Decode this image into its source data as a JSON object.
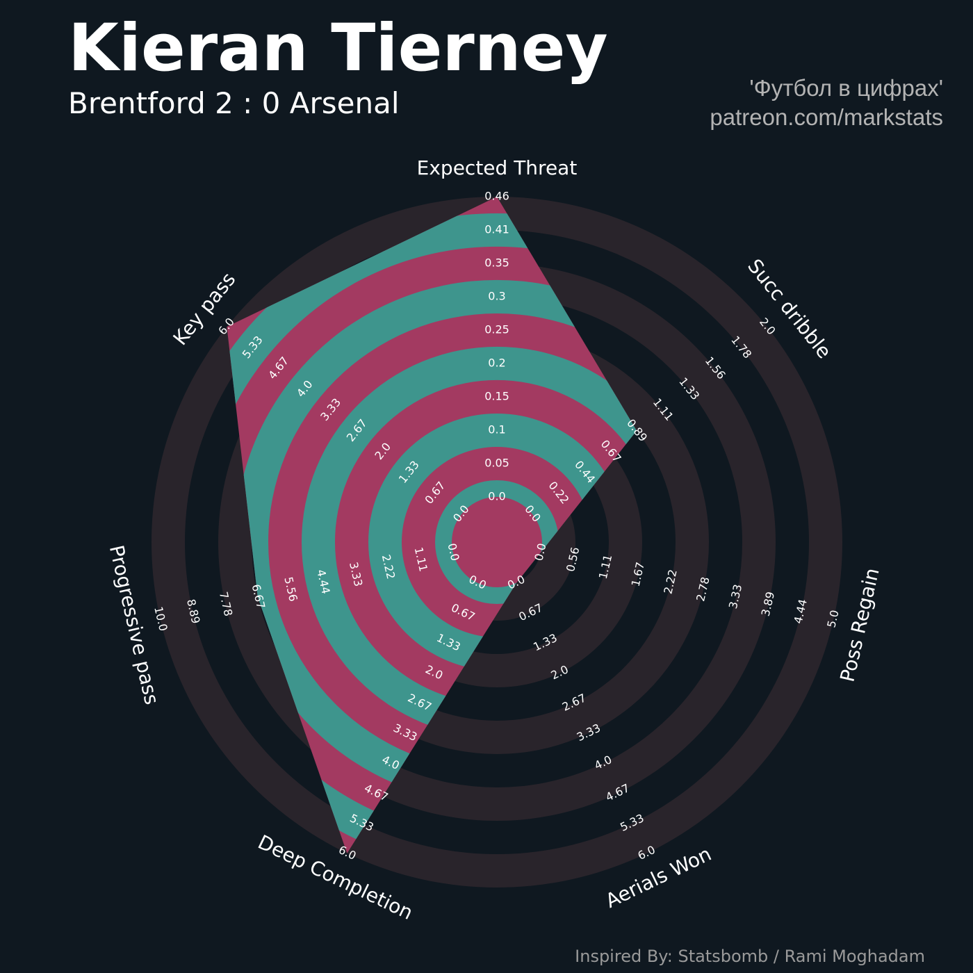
{
  "header": {
    "title": "Kieran Tierney",
    "subtitle": "Brentford 2 : 0 Arsenal",
    "credit_line1": "'Футбол в цифрах'",
    "credit_line2": "patreon.com/markstats"
  },
  "footer": {
    "text": "Inspired By: Statsbomb / Rami Moghadam"
  },
  "colors": {
    "background": "#0f1820",
    "ring_dark": "#29242b",
    "fill_teal": "#3e958d",
    "fill_pink": "#a33a61",
    "label": "#ffffff",
    "tick": "#ffffff",
    "credit": "#b3b3b3",
    "footer": "#9a9a9a"
  },
  "chart_data": {
    "type": "radar",
    "title": "Kieran Tierney",
    "subtitle": "Brentford 2 : 0 Arsenal",
    "axes": [
      {
        "name": "Expected Threat",
        "min": 0.0,
        "max": 0.46,
        "value": 0.46,
        "ticks": [
          "0.0",
          "0.05",
          "0.1",
          "0.15",
          "0.2",
          "0.25",
          "0.3",
          "0.35",
          "0.41",
          "0.46"
        ]
      },
      {
        "name": "Succ dribble",
        "min": 0.0,
        "max": 2.0,
        "value": 0.89,
        "ticks": [
          "0.0",
          "0.22",
          "0.44",
          "0.67",
          "0.89",
          "1.11",
          "1.33",
          "1.56",
          "1.78",
          "2.0"
        ]
      },
      {
        "name": "Poss Regain",
        "min": 0.0,
        "max": 5.0,
        "value": 0.0,
        "ticks": [
          "0.0",
          "0.56",
          "1.11",
          "1.67",
          "2.22",
          "2.78",
          "3.33",
          "3.89",
          "4.44",
          "5.0"
        ]
      },
      {
        "name": "Aerials Won",
        "min": 0.0,
        "max": 6.0,
        "value": 0.0,
        "ticks": [
          "0.0",
          "0.67",
          "1.33",
          "2.0",
          "2.67",
          "3.33",
          "4.0",
          "4.67",
          "5.33",
          "6.0"
        ]
      },
      {
        "name": "Deep Completion",
        "min": 0.0,
        "max": 6.0,
        "value": 6.0,
        "ticks": [
          "0.0",
          "0.67",
          "1.33",
          "2.0",
          "2.67",
          "3.33",
          "4.0",
          "4.67",
          "5.33",
          "6.0"
        ]
      },
      {
        "name": "Progressive pass",
        "min": 0.0,
        "max": 10.0,
        "value": 6.67,
        "ticks": [
          "0.0",
          "1.11",
          "2.22",
          "3.33",
          "4.44",
          "5.56",
          "6.67",
          "7.78",
          "8.89",
          "10.0"
        ]
      },
      {
        "name": "Key pass",
        "min": 0.0,
        "max": 6.0,
        "value": 6.0,
        "ticks": [
          "0.0",
          "0.67",
          "1.33",
          "2.0",
          "2.67",
          "3.33",
          "4.0",
          "4.67",
          "5.33",
          "6.0"
        ]
      }
    ],
    "grid": true,
    "legend": "none"
  }
}
